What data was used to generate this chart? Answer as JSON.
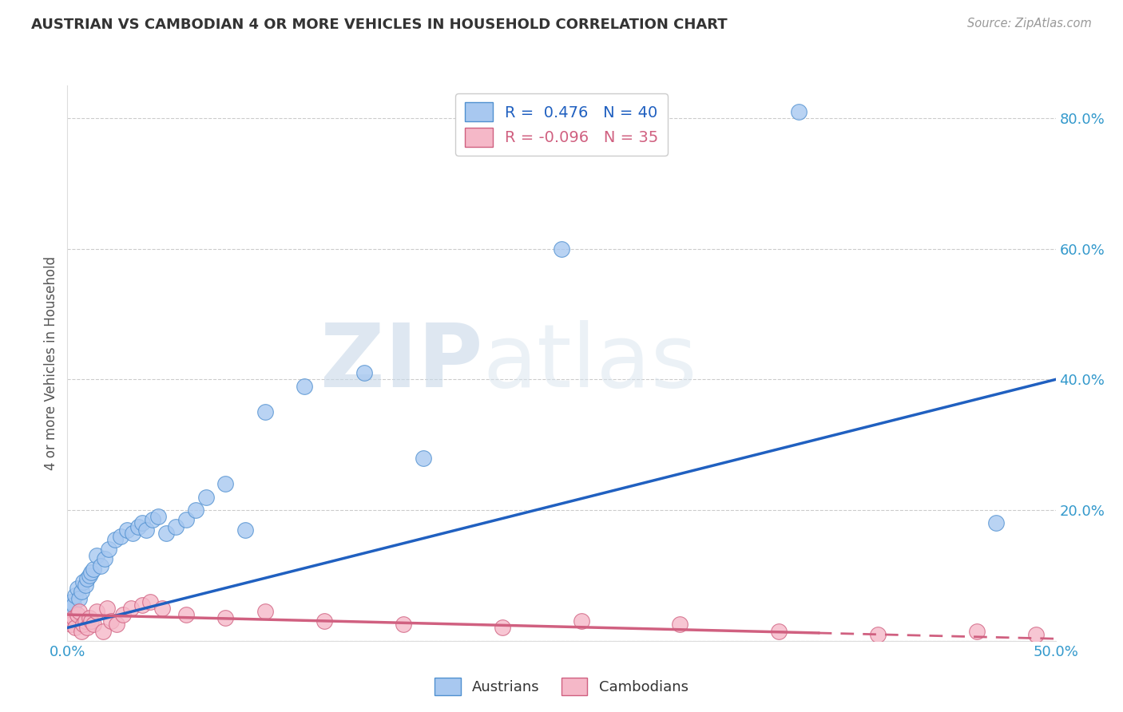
{
  "title": "AUSTRIAN VS CAMBODIAN 4 OR MORE VEHICLES IN HOUSEHOLD CORRELATION CHART",
  "source": "Source: ZipAtlas.com",
  "ylabel": "4 or more Vehicles in Household",
  "watermark_zip": "ZIP",
  "watermark_atlas": "atlas",
  "legend_austrians": "Austrians",
  "legend_cambodians": "Cambodians",
  "R_austrians": 0.476,
  "N_austrians": 40,
  "R_cambodians": -0.096,
  "N_cambodians": 35,
  "austrians_x": [
    0.001,
    0.002,
    0.003,
    0.004,
    0.005,
    0.006,
    0.007,
    0.008,
    0.009,
    0.01,
    0.011,
    0.012,
    0.013,
    0.015,
    0.017,
    0.019,
    0.021,
    0.024,
    0.027,
    0.03,
    0.033,
    0.036,
    0.038,
    0.04,
    0.043,
    0.046,
    0.05,
    0.055,
    0.06,
    0.065,
    0.07,
    0.08,
    0.09,
    0.1,
    0.12,
    0.15,
    0.18,
    0.25,
    0.37,
    0.47
  ],
  "austrians_y": [
    0.05,
    0.06,
    0.055,
    0.07,
    0.08,
    0.065,
    0.075,
    0.09,
    0.085,
    0.095,
    0.1,
    0.105,
    0.11,
    0.13,
    0.115,
    0.125,
    0.14,
    0.155,
    0.16,
    0.17,
    0.165,
    0.175,
    0.18,
    0.17,
    0.185,
    0.19,
    0.165,
    0.175,
    0.185,
    0.2,
    0.22,
    0.24,
    0.17,
    0.35,
    0.39,
    0.41,
    0.28,
    0.6,
    0.81,
    0.18
  ],
  "cambodians_x": [
    0.001,
    0.002,
    0.003,
    0.004,
    0.005,
    0.006,
    0.007,
    0.008,
    0.009,
    0.01,
    0.011,
    0.012,
    0.013,
    0.015,
    0.018,
    0.02,
    0.022,
    0.025,
    0.028,
    0.032,
    0.038,
    0.042,
    0.048,
    0.06,
    0.08,
    0.1,
    0.13,
    0.17,
    0.22,
    0.26,
    0.31,
    0.36,
    0.41,
    0.46,
    0.49
  ],
  "cambodians_y": [
    0.03,
    0.025,
    0.035,
    0.02,
    0.04,
    0.045,
    0.015,
    0.025,
    0.03,
    0.02,
    0.035,
    0.03,
    0.025,
    0.045,
    0.015,
    0.05,
    0.03,
    0.025,
    0.04,
    0.05,
    0.055,
    0.06,
    0.05,
    0.04,
    0.035,
    0.045,
    0.03,
    0.025,
    0.02,
    0.03,
    0.025,
    0.015,
    0.01,
    0.015,
    0.01
  ],
  "xlim": [
    0.0,
    0.5
  ],
  "ylim": [
    0.0,
    0.85
  ],
  "yticks": [
    0.0,
    0.2,
    0.4,
    0.6,
    0.8
  ],
  "ytick_labels": [
    "",
    "20.0%",
    "40.0%",
    "60.0%",
    "80.0%"
  ],
  "color_austrians_fill": "#a8c8f0",
  "color_austrians_edge": "#5090d0",
  "color_cambodians_fill": "#f5b8c8",
  "color_cambodians_edge": "#d06080",
  "color_line_austrians": "#2060c0",
  "color_line_cambodians": "#d06080",
  "background_color": "#ffffff",
  "grid_color": "#cccccc",
  "xtick_color": "#3399cc",
  "ytick_color": "#3399cc"
}
